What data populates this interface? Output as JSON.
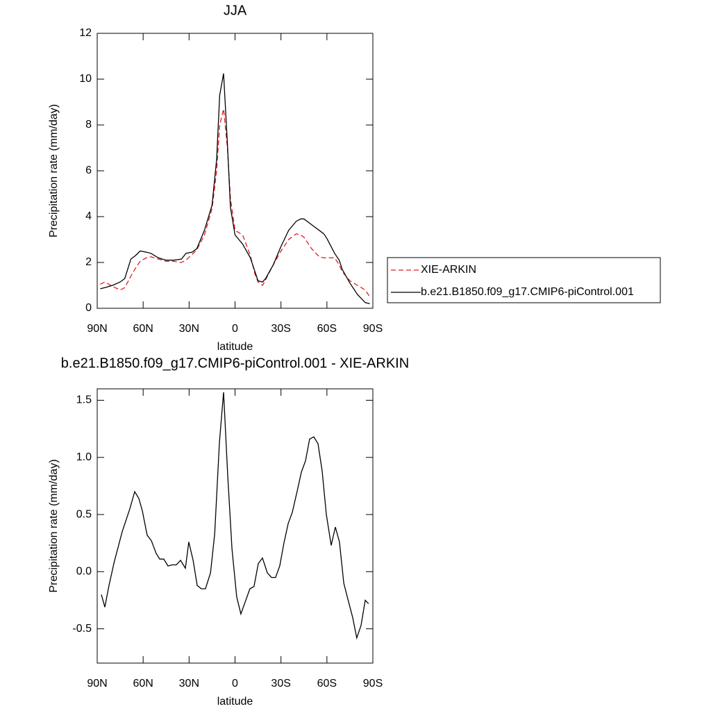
{
  "chart_data": [
    {
      "type": "line",
      "title": "JJA",
      "x_label": "latitude",
      "y_label": "Precipitation rate (mm/day)",
      "xlim": [
        90,
        -90
      ],
      "xticks": [
        {
          "value": 90,
          "label": "90N"
        },
        {
          "value": 60,
          "label": "60N"
        },
        {
          "value": 30,
          "label": "30N"
        },
        0,
        {
          "value": -30,
          "label": "30S"
        },
        {
          "value": -60,
          "label": "60S"
        },
        {
          "value": -90,
          "label": "90S"
        }
      ],
      "ylim": [
        0,
        12
      ],
      "yticks": [
        0,
        2,
        4,
        6,
        8,
        10,
        12
      ],
      "legend": "right",
      "x": [
        88,
        85,
        80,
        75,
        72,
        68,
        65,
        62,
        58,
        55,
        50,
        45,
        40,
        35,
        32,
        28,
        25,
        20,
        15,
        12,
        10,
        7.5,
        5,
        3,
        0,
        -5,
        -10,
        -13,
        -15,
        -18,
        -20,
        -25,
        -30,
        -35,
        -40,
        -43,
        -45,
        -50,
        -55,
        -58,
        -60,
        -65,
        -68,
        -70,
        -75,
        -80,
        -85,
        -88
      ],
      "series": [
        {
          "name": "XIE-ARKIN",
          "color": "#e41a1c",
          "dash": true,
          "values": [
            1.05,
            1.15,
            0.95,
            0.8,
            0.9,
            1.4,
            1.75,
            2.05,
            2.2,
            2.25,
            2.15,
            2.05,
            2.05,
            2.0,
            2.1,
            2.35,
            2.55,
            3.2,
            4.35,
            6.0,
            8.0,
            8.7,
            7.0,
            4.8,
            3.4,
            3.2,
            2.3,
            1.5,
            1.15,
            1.0,
            1.25,
            1.9,
            2.5,
            3.0,
            3.25,
            3.2,
            3.1,
            2.6,
            2.25,
            2.2,
            2.2,
            2.2,
            1.9,
            1.6,
            1.2,
            1.0,
            0.8,
            0.5
          ]
        },
        {
          "name": "b.e21.B1850.f09_g17.CMIP6-piControl.001",
          "color": "#000000",
          "dash": false,
          "values": [
            0.85,
            0.9,
            1.0,
            1.15,
            1.3,
            2.15,
            2.3,
            2.5,
            2.45,
            2.4,
            2.2,
            2.1,
            2.1,
            2.15,
            2.4,
            2.45,
            2.6,
            3.4,
            4.5,
            6.5,
            9.3,
            10.25,
            7.2,
            4.4,
            3.2,
            2.8,
            2.2,
            1.6,
            1.2,
            1.15,
            1.3,
            1.9,
            2.7,
            3.4,
            3.8,
            3.9,
            3.9,
            3.65,
            3.4,
            3.25,
            3.05,
            2.4,
            2.1,
            1.7,
            1.1,
            0.6,
            0.25,
            0.2
          ]
        }
      ]
    },
    {
      "type": "line",
      "title": "b.e21.B1850.f09_g17.CMIP6-piControl.001 - XIE-ARKIN",
      "x_label": "latitude",
      "y_label": "Precipitation rate (mm/day)",
      "xlim": [
        90,
        -90
      ],
      "xticks": [
        {
          "value": 90,
          "label": "90N"
        },
        {
          "value": 60,
          "label": "60N"
        },
        {
          "value": 30,
          "label": "30N"
        },
        0,
        {
          "value": -30,
          "label": "30S"
        },
        {
          "value": -60,
          "label": "60S"
        },
        {
          "value": -90,
          "label": "90S"
        }
      ],
      "ylim": [
        -0.8,
        1.6
      ],
      "yticks": [
        {
          "value": -0.5,
          "label": "-0.5"
        },
        {
          "value": 0,
          "label": "0.0"
        },
        0.5,
        {
          "value": 1,
          "label": "1.0"
        },
        1.5
      ],
      "color": "#000000",
      "x": [
        87.3,
        85,
        82.3,
        79,
        73.7,
        68.7,
        65.5,
        62.8,
        60.5,
        57.4,
        54.6,
        51.5,
        49.2,
        46.5,
        43.8,
        41,
        38.3,
        35.6,
        32.4,
        30.2,
        27.4,
        24.7,
        22,
        19.3,
        16,
        13.3,
        10.2,
        7.5,
        4.8,
        2,
        -1.1,
        -3.8,
        -6.5,
        -9.7,
        -12.4,
        -15.2,
        -17.9,
        -21.1,
        -23.8,
        -26.5,
        -29.2,
        -31.9,
        -34.7,
        -37.4,
        -40.5,
        -43.3,
        -46,
        -48.7,
        -51.4,
        -54.2,
        -56.9,
        -59.6,
        -62.8,
        -65.5,
        -68.2,
        -71,
        -73.7,
        -76.8,
        -79.5,
        -82.3,
        -85,
        -87.2
      ],
      "values": [
        -0.2,
        -0.31,
        -0.12,
        0.08,
        0.35,
        0.55,
        0.7,
        0.64,
        0.53,
        0.32,
        0.27,
        0.16,
        0.11,
        0.11,
        0.05,
        0.06,
        0.06,
        0.1,
        0.03,
        0.26,
        0.1,
        -0.12,
        -0.15,
        -0.15,
        -0.01,
        0.33,
        1.13,
        1.57,
        0.85,
        0.2,
        -0.22,
        -0.37,
        -0.27,
        -0.15,
        -0.13,
        0.07,
        0.12,
        -0.01,
        -0.05,
        -0.05,
        0.05,
        0.25,
        0.42,
        0.52,
        0.7,
        0.87,
        0.97,
        1.16,
        1.18,
        1.12,
        0.88,
        0.5,
        0.23,
        0.39,
        0.26,
        -0.1,
        -0.24,
        -0.4,
        -0.58,
        -0.47,
        -0.25,
        -0.28
      ]
    }
  ]
}
